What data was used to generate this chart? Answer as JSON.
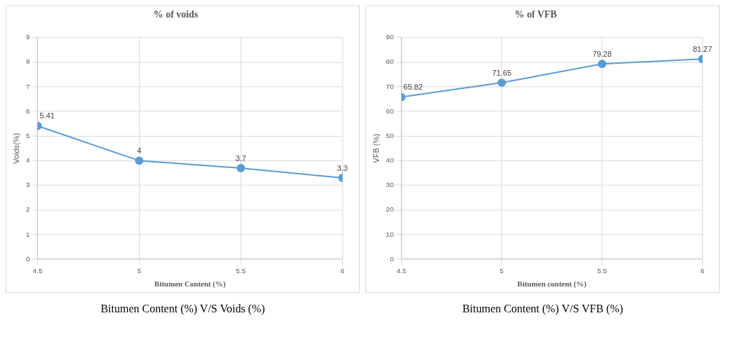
{
  "chart_data": [
    {
      "type": "line",
      "title": "% of voids",
      "xlabel": "Bitumen Content (%)",
      "ylabel": "Voids(%)",
      "x": [
        4.5,
        5,
        5.5,
        6
      ],
      "xlim": [
        4.5,
        6
      ],
      "xticks": [
        4.5,
        5,
        5.5,
        6
      ],
      "ylim": [
        0,
        9
      ],
      "yticks": [
        0,
        1,
        2,
        3,
        4,
        5,
        6,
        7,
        8,
        9
      ],
      "series": [
        {
          "color": "#5b9bd5",
          "values": [
            5.41,
            4,
            3.7,
            3.3
          ]
        }
      ],
      "data_labels": true,
      "grid": true,
      "marker": "circle",
      "legend": false,
      "annotations": [
        "Bitumen Content (%) V/S Voids (%)"
      ]
    },
    {
      "type": "line",
      "title": "% of VFB",
      "xlabel": "Bitumen content (%)",
      "ylabel": "VFB (%)",
      "x": [
        4.5,
        5,
        5.5,
        6
      ],
      "xlim": [
        4.5,
        6
      ],
      "xticks": [
        4.5,
        5,
        5.5,
        6
      ],
      "ylim": [
        0,
        90
      ],
      "yticks": [
        0,
        10,
        20,
        30,
        40,
        50,
        60,
        70,
        80,
        90
      ],
      "series": [
        {
          "color": "#5b9bd5",
          "values": [
            65.82,
            71.65,
            79.28,
            81.27
          ]
        }
      ],
      "data_labels": true,
      "grid": true,
      "marker": "circle",
      "legend": false,
      "annotations": [
        "Bitumen Content (%) V/S VFB (%)"
      ]
    }
  ]
}
